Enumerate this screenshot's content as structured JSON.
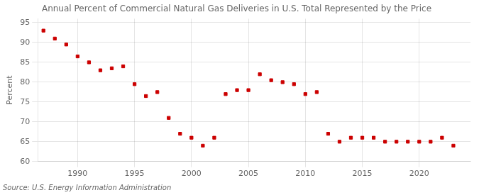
{
  "chart_data": {
    "type": "scatter",
    "title": "Annual Percent of Commercial Natural Gas Deliveries in U.S. Total Represented by the Price",
    "ylabel": "Percent",
    "annotations": [
      "Source: U.S. Energy Information Administration"
    ],
    "x": [
      1987,
      1988,
      1989,
      1990,
      1991,
      1992,
      1993,
      1994,
      1995,
      1996,
      1997,
      1998,
      1999,
      2000,
      2001,
      2002,
      2003,
      2004,
      2005,
      2006,
      2007,
      2008,
      2009,
      2010,
      2011,
      2012,
      2013,
      2014,
      2015,
      2016,
      2017,
      2018,
      2019,
      2020,
      2021,
      2022,
      2023
    ],
    "values": [
      93,
      91,
      89.5,
      86.5,
      85,
      83,
      83.5,
      84,
      79.5,
      76.5,
      77.5,
      71,
      67,
      66,
      64,
      66,
      77,
      78,
      78,
      82,
      80.5,
      80,
      79.5,
      77,
      77.5,
      67,
      65,
      66,
      66,
      66,
      65,
      65,
      65,
      65,
      65,
      66,
      64
    ],
    "color": "#cc0000",
    "marker": "square",
    "xlim": [
      1986.5,
      2024.5
    ],
    "xticks": [
      1990,
      1995,
      2000,
      2005,
      2010,
      2015,
      2020
    ],
    "ylim": [
      60,
      96
    ],
    "yticks": [
      60,
      65,
      70,
      75,
      80,
      85,
      90,
      95
    ],
    "grid": true
  }
}
